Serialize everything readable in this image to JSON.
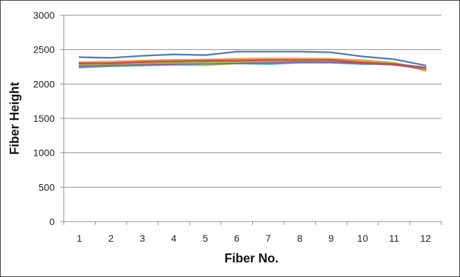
{
  "chart_data": {
    "type": "line",
    "xlabel": "Fiber No.",
    "ylabel": "Fiber Height",
    "categories": [
      "1",
      "2",
      "3",
      "4",
      "5",
      "6",
      "7",
      "8",
      "9",
      "10",
      "11",
      "12"
    ],
    "y_ticks": [
      "0",
      "500",
      "1000",
      "1500",
      "2000",
      "2500",
      "3000"
    ],
    "ylim": [
      0,
      3000
    ],
    "grid": true,
    "legend": "none",
    "series": [
      {
        "color": "#4a7ebb",
        "values": [
          2390,
          2380,
          2410,
          2430,
          2420,
          2470,
          2470,
          2470,
          2460,
          2400,
          2360,
          2270
        ]
      },
      {
        "color": "#c0504d",
        "values": [
          2300,
          2300,
          2320,
          2330,
          2340,
          2340,
          2350,
          2350,
          2350,
          2310,
          2290,
          2240
        ]
      },
      {
        "color": "#9bbb59",
        "values": [
          2280,
          2290,
          2300,
          2310,
          2310,
          2320,
          2330,
          2340,
          2340,
          2320,
          2300,
          2230
        ]
      },
      {
        "color": "#8064a2",
        "values": [
          2260,
          2270,
          2280,
          2290,
          2300,
          2300,
          2310,
          2320,
          2320,
          2300,
          2280,
          2220
        ]
      },
      {
        "color": "#4bacc6",
        "values": [
          2240,
          2260,
          2270,
          2280,
          2290,
          2300,
          2290,
          2310,
          2310,
          2290,
          2290,
          2230
        ]
      },
      {
        "color": "#f79646",
        "values": [
          2310,
          2320,
          2340,
          2350,
          2350,
          2360,
          2360,
          2360,
          2360,
          2340,
          2300,
          2200
        ]
      },
      {
        "color": "#ffc000",
        "values": [
          2280,
          2290,
          2290,
          2280,
          2270,
          2300,
          2310,
          2320,
          2340,
          2340,
          2310,
          2210
        ]
      },
      {
        "color": "#f2c4a0",
        "values": [
          2320,
          2330,
          2340,
          2350,
          2360,
          2370,
          2380,
          2380,
          2370,
          2350,
          2310,
          2190
        ]
      },
      {
        "color": "#7f6040",
        "values": [
          2300,
          2310,
          2320,
          2320,
          2330,
          2330,
          2340,
          2340,
          2340,
          2310,
          2290,
          2240
        ]
      }
    ]
  }
}
